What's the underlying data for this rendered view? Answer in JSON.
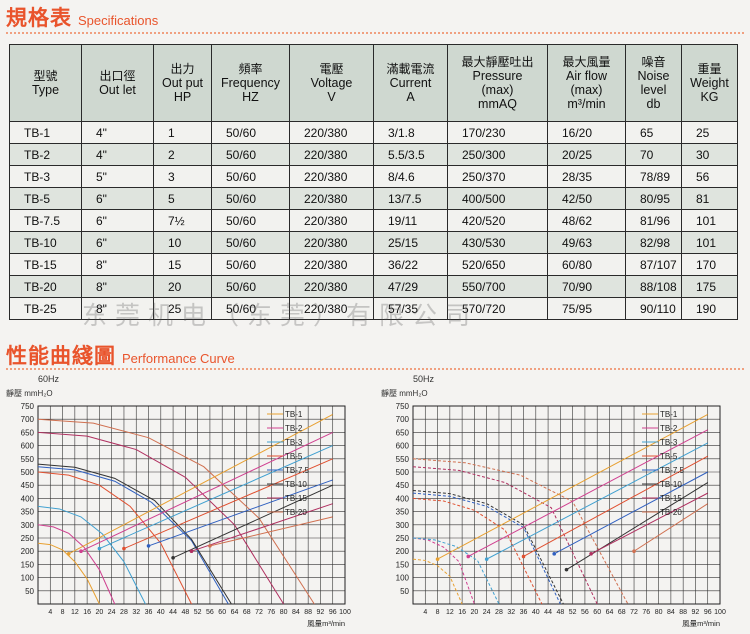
{
  "spec_section": {
    "title_cn": "規格表",
    "title_en": "Specifications"
  },
  "table": {
    "headers": [
      {
        "cn": "型號",
        "en": [
          "Type"
        ]
      },
      {
        "cn": "出口徑",
        "en": [
          "Out let"
        ]
      },
      {
        "cn": "出力",
        "en": [
          "Out put",
          "HP"
        ]
      },
      {
        "cn": "頻率",
        "en": [
          "Frequency",
          "HZ"
        ]
      },
      {
        "cn": "電壓",
        "en": [
          "Voltage",
          "V"
        ]
      },
      {
        "cn": "滿載電流",
        "en": [
          "Current",
          "A"
        ]
      },
      {
        "cn": "最大靜壓吐出",
        "en": [
          "Pressure",
          "(max)",
          "mmAQ"
        ]
      },
      {
        "cn": "最大風量",
        "en": [
          "Air flow",
          "(max)",
          "m³/min"
        ]
      },
      {
        "cn": "噪音",
        "en": [
          "Noise",
          "level",
          "db"
        ]
      },
      {
        "cn": "重量",
        "en": [
          "Weight",
          "KG"
        ]
      }
    ],
    "rows": [
      [
        "TB-1",
        "4\"",
        "1",
        "50/60",
        "220/380",
        "3/1.8",
        "170/230",
        "16/20",
        "65",
        "25"
      ],
      [
        "TB-2",
        "4\"",
        "2",
        "50/60",
        "220/380",
        "5.5/3.5",
        "250/300",
        "20/25",
        "70",
        "30"
      ],
      [
        "TB-3",
        "5\"",
        "3",
        "50/60",
        "220/380",
        "8/4.6",
        "250/370",
        "28/35",
        "78/89",
        "56"
      ],
      [
        "TB-5",
        "6\"",
        "5",
        "50/60",
        "220/380",
        "13/7.5",
        "400/500",
        "42/50",
        "80/95",
        "81"
      ],
      [
        "TB-7.5",
        "6\"",
        "7½",
        "50/60",
        "220/380",
        "19/11",
        "420/520",
        "48/62",
        "81/96",
        "101"
      ],
      [
        "TB-10",
        "6\"",
        "10",
        "50/60",
        "220/380",
        "25/15",
        "430/530",
        "49/63",
        "82/98",
        "101"
      ],
      [
        "TB-15",
        "8\"",
        "15",
        "50/60",
        "220/380",
        "36/22",
        "520/650",
        "60/80",
        "87/107",
        "170"
      ],
      [
        "TB-20",
        "8\"",
        "20",
        "50/60",
        "220/380",
        "47/29",
        "550/700",
        "70/90",
        "88/108",
        "175"
      ],
      [
        "TB-25",
        "8\"",
        "25",
        "50/60",
        "220/380",
        "57/35",
        "570/720",
        "75/95",
        "90/110",
        "190"
      ]
    ]
  },
  "watermark": "东莞机电（东莞）有限公司",
  "perf_section": {
    "title_cn": "性能曲綫圖",
    "title_en": "Performance Curve"
  },
  "chart_data": [
    {
      "type": "line",
      "freq_label": "60Hz",
      "ylabel": "靜壓 mmH₂O",
      "xlabel": "風量m³/min",
      "ylim": [
        0,
        750
      ],
      "xlim": [
        0,
        100
      ],
      "yticks": [
        50,
        100,
        150,
        200,
        250,
        300,
        350,
        400,
        450,
        500,
        550,
        600,
        650,
        700,
        750
      ],
      "xticks": [
        4,
        8,
        12,
        16,
        20,
        24,
        28,
        32,
        36,
        40,
        44,
        48,
        52,
        56,
        60,
        64,
        68,
        72,
        76,
        80,
        84,
        88,
        92,
        96,
        100
      ],
      "series": [
        {
          "name": "TB-1",
          "color": "#e8a030",
          "x": [
            0,
            4,
            8,
            12,
            16,
            20
          ],
          "y": [
            230,
            225,
            205,
            160,
            95,
            0
          ]
        },
        {
          "name": "TB-2",
          "color": "#d04090",
          "x": [
            0,
            5,
            10,
            15,
            20,
            25
          ],
          "y": [
            300,
            292,
            268,
            215,
            130,
            0
          ]
        },
        {
          "name": "TB-3",
          "color": "#40a0d0",
          "x": [
            0,
            7,
            14,
            21,
            28,
            35
          ],
          "y": [
            370,
            360,
            330,
            265,
            160,
            0
          ]
        },
        {
          "name": "TB-5",
          "color": "#e05030",
          "x": [
            0,
            10,
            20,
            30,
            40,
            50
          ],
          "y": [
            500,
            488,
            450,
            370,
            230,
            0
          ]
        },
        {
          "name": "TB-7.5",
          "color": "#3060c0",
          "x": [
            0,
            12,
            25,
            37,
            50,
            62
          ],
          "y": [
            520,
            508,
            465,
            385,
            240,
            0
          ]
        },
        {
          "name": "TB-10",
          "color": "#333333",
          "x": [
            0,
            12,
            25,
            38,
            50,
            63
          ],
          "y": [
            530,
            518,
            476,
            392,
            245,
            0
          ]
        },
        {
          "name": "TB-15",
          "color": "#b03060",
          "x": [
            0,
            16,
            32,
            48,
            64,
            80
          ],
          "y": [
            650,
            636,
            585,
            480,
            300,
            0
          ]
        },
        {
          "name": "TB-20",
          "color": "#d07050",
          "x": [
            0,
            18,
            36,
            54,
            72,
            90
          ],
          "y": [
            700,
            685,
            630,
            520,
            325,
            0
          ]
        }
      ],
      "system_lines": [
        {
          "name": "TB-1",
          "color": "#e8a030",
          "from": [
            10,
            190
          ],
          "to": [
            96,
            718
          ]
        },
        {
          "name": "TB-2",
          "color": "#d04090",
          "from": [
            14,
            200
          ],
          "to": [
            96,
            650
          ]
        },
        {
          "name": "TB-3",
          "color": "#40a0d0",
          "from": [
            20,
            210
          ],
          "to": [
            96,
            600
          ]
        },
        {
          "name": "TB-5",
          "color": "#e05030",
          "from": [
            28,
            210
          ],
          "to": [
            96,
            550
          ]
        },
        {
          "name": "TB-7.5",
          "color": "#3060c0",
          "from": [
            36,
            220
          ],
          "to": [
            96,
            470
          ]
        },
        {
          "name": "TB-10",
          "color": "#333333",
          "from": [
            44,
            175
          ],
          "to": [
            96,
            450
          ]
        },
        {
          "name": "TB-15",
          "color": "#b03060",
          "from": [
            50,
            200
          ],
          "to": [
            96,
            380
          ]
        },
        {
          "name": "TB-20",
          "color": "#d07050",
          "from": [
            56,
            220
          ],
          "to": [
            96,
            330
          ]
        }
      ]
    },
    {
      "type": "line",
      "freq_label": "50Hz",
      "ylabel": "靜壓 mmH₂O",
      "xlabel": "風量m³/min",
      "ylim": [
        0,
        750
      ],
      "xlim": [
        0,
        100
      ],
      "yticks": [
        50,
        100,
        150,
        200,
        250,
        300,
        350,
        400,
        450,
        500,
        550,
        600,
        650,
        700,
        750
      ],
      "xticks": [
        4,
        8,
        12,
        16,
        20,
        24,
        28,
        32,
        36,
        40,
        44,
        48,
        52,
        56,
        60,
        64,
        68,
        72,
        76,
        80,
        84,
        88,
        92,
        96,
        100
      ],
      "series": [
        {
          "name": "TB-1",
          "color": "#e8a030",
          "x": [
            0,
            4,
            8,
            12,
            16
          ],
          "y": [
            170,
            165,
            145,
            105,
            0
          ]
        },
        {
          "name": "TB-2",
          "color": "#d04090",
          "x": [
            0,
            5,
            10,
            15,
            20
          ],
          "y": [
            250,
            242,
            215,
            160,
            0
          ]
        },
        {
          "name": "TB-3",
          "color": "#40a0d0",
          "x": [
            0,
            7,
            14,
            21,
            28
          ],
          "y": [
            250,
            243,
            218,
            165,
            0
          ]
        },
        {
          "name": "TB-5",
          "color": "#e05030",
          "x": [
            0,
            10,
            20,
            30,
            42
          ],
          "y": [
            400,
            390,
            355,
            280,
            0
          ]
        },
        {
          "name": "TB-7.5",
          "color": "#3060c0",
          "x": [
            0,
            12,
            24,
            36,
            48
          ],
          "y": [
            420,
            408,
            370,
            290,
            0
          ]
        },
        {
          "name": "TB-10",
          "color": "#333333",
          "x": [
            0,
            12,
            24,
            36,
            49
          ],
          "y": [
            430,
            418,
            380,
            300,
            0
          ]
        },
        {
          "name": "TB-15",
          "color": "#b03060",
          "x": [
            0,
            15,
            30,
            45,
            60
          ],
          "y": [
            520,
            506,
            460,
            365,
            0
          ]
        },
        {
          "name": "TB-20",
          "color": "#d07050",
          "x": [
            0,
            17,
            35,
            52,
            70
          ],
          "y": [
            550,
            535,
            488,
            388,
            0
          ]
        }
      ],
      "system_lines": [
        {
          "name": "TB-1",
          "color": "#e8a030",
          "from": [
            8,
            170
          ],
          "to": [
            96,
            718
          ]
        },
        {
          "name": "TB-2",
          "color": "#d04090",
          "from": [
            18,
            180
          ],
          "to": [
            96,
            660
          ]
        },
        {
          "name": "TB-3",
          "color": "#40a0d0",
          "from": [
            24,
            170
          ],
          "to": [
            96,
            610
          ]
        },
        {
          "name": "TB-5",
          "color": "#e05030",
          "from": [
            36,
            180
          ],
          "to": [
            96,
            560
          ]
        },
        {
          "name": "TB-7.5",
          "color": "#3060c0",
          "from": [
            46,
            190
          ],
          "to": [
            96,
            500
          ]
        },
        {
          "name": "TB-10",
          "color": "#333333",
          "from": [
            50,
            130
          ],
          "to": [
            96,
            460
          ]
        },
        {
          "name": "TB-15",
          "color": "#b03060",
          "from": [
            58,
            190
          ],
          "to": [
            96,
            420
          ]
        },
        {
          "name": "TB-20",
          "color": "#d07050",
          "from": [
            72,
            200
          ],
          "to": [
            96,
            380
          ]
        }
      ]
    }
  ]
}
